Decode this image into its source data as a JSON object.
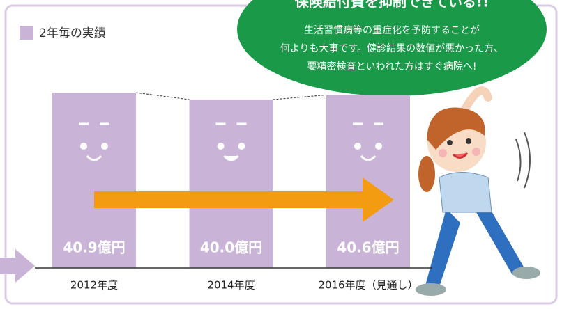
{
  "chart_data": {
    "type": "bar",
    "title": "保険給付費を抑制できている!!",
    "annotations": [
      "生活習慣病等の重症化を予防することが",
      "何よりも大事です。健診結果の数値が悪かった方、",
      "要精密検査といわれた方はすぐ病院へ!"
    ],
    "legend": "2年毎の実績",
    "categories": [
      "2012年度",
      "2014年度",
      "2016年度（見通し）"
    ],
    "values": [
      40.9,
      40.0,
      40.6
    ],
    "value_labels": [
      "40.9億円",
      "40.0億円",
      "40.6億円"
    ],
    "color": "#c9b4d7",
    "ylim": [
      18,
      43
    ]
  }
}
